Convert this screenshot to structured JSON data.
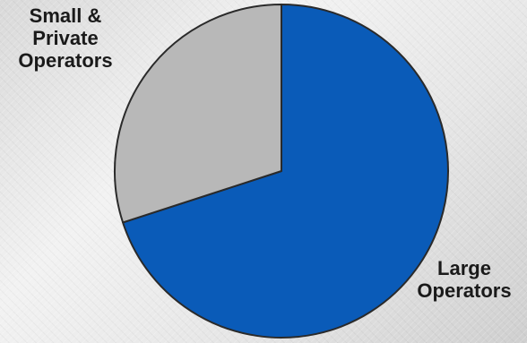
{
  "chart_data": {
    "type": "pie",
    "slices": [
      {
        "label_lines": [
          "Large",
          "Operators"
        ],
        "value": 70,
        "color": "#0a5bb8"
      },
      {
        "label_lines": [
          "Small &",
          "Private",
          "Operators"
        ],
        "value": 30,
        "color": "#b8b8b8"
      }
    ],
    "start_angle_deg": 0,
    "direction": "clockwise",
    "unit": "percent",
    "legend": "none"
  }
}
